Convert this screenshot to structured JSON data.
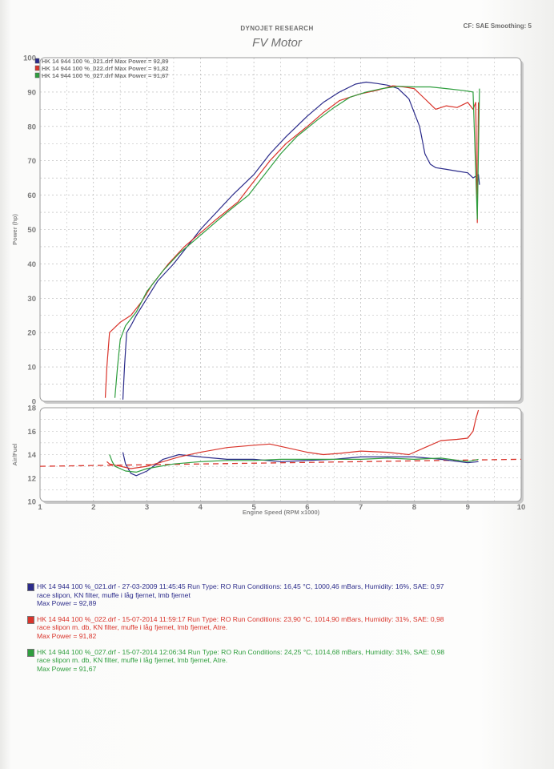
{
  "header": {
    "research": "DYNOJET RESEARCH",
    "cf": "CF: SAE  Smoothing: 5",
    "title": "FV Motor"
  },
  "chart_legend": [
    {
      "text": "HK 14 944 100 %_021.drf Max Power = 92,89",
      "color": "#2b2b8a"
    },
    {
      "text": "HK 14 944 100 %_022.drf Max Power = 91,82",
      "color": "#d9342b"
    },
    {
      "text": "HK 14 944 100 %_027.drf Max Power = 91,67",
      "color": "#2f9e3e"
    }
  ],
  "axes": {
    "power_ylabel": "Power (hp)",
    "af_ylabel": "Air/Fuel",
    "xlabel": "Engine Speed (RPM x1000)",
    "power_ticks": [
      "0",
      "10",
      "20",
      "30",
      "40",
      "50",
      "60",
      "70",
      "80",
      "90",
      "100"
    ],
    "af_ticks": [
      "10",
      "12",
      "14",
      "16",
      "18"
    ],
    "x_ticks": [
      "1",
      "2",
      "3",
      "4",
      "5",
      "6",
      "7",
      "8",
      "9",
      "10"
    ]
  },
  "runs": [
    {
      "color": "#2b2b8a",
      "line1": "HK 14 944 100 %_021.drf - 27-03-2009 11:45:45  Run Type: RO  Run Conditions: 16,45 °C, 1000,46 mBars,  Humidity:  16%, SAE: 0,97",
      "line2": "race slipon, KN filter, muffe i låg fjernet, lmb fjernet",
      "line3": "Max Power = 92,89"
    },
    {
      "color": "#d9342b",
      "line1": "HK 14 944 100 %_022.drf - 15-07-2014 11:59:17  Run Type: RO  Run Conditions: 23,90 °C, 1014,90 mBars,  Humidity:  31%, SAE: 0,98",
      "line2": "race slipon m. db, KN filter, muffe i låg fjernet, lmb fjernet, Atre.",
      "line3": "Max Power = 91,82"
    },
    {
      "color": "#2f9e3e",
      "line1": "HK 14 944 100 %_027.drf - 15-07-2014 12:06:34  Run Type: RO  Run Conditions: 24,25 °C, 1014,68 mBars,  Humidity:  31%, SAE: 0,98",
      "line2": "race slipon m. db, KN filter, muffe i låg fjernet, lmb fjernet, Atre.",
      "line3": "Max Power = 91,67"
    }
  ],
  "chart_data": [
    {
      "type": "line",
      "ylabel": "Power (hp)",
      "xlabel": "Engine Speed (RPM x1000)",
      "xlim": [
        1,
        10
      ],
      "ylim": [
        0,
        100
      ],
      "grid": true,
      "legend_position": "top-left",
      "series": [
        {
          "name": "HK 14 944 100 %_021.drf Max Power = 92,89",
          "color": "#2b2b8a",
          "x": [
            2.55,
            2.58,
            2.62,
            2.7,
            2.8,
            3.0,
            3.2,
            3.5,
            3.8,
            4.0,
            4.3,
            4.6,
            5.0,
            5.3,
            5.6,
            6.0,
            6.3,
            6.6,
            6.9,
            7.1,
            7.3,
            7.5,
            7.7,
            7.9,
            8.1,
            8.2,
            8.3,
            8.4,
            8.6,
            8.8,
            9.0,
            9.1,
            9.2,
            9.22
          ],
          "y": [
            0.5,
            10,
            20,
            22,
            25,
            30,
            35,
            40,
            46,
            50,
            55,
            60,
            66,
            72,
            77,
            83,
            87,
            90,
            92.3,
            92.89,
            92.5,
            92,
            91,
            88,
            80,
            72,
            69,
            68,
            67.5,
            67,
            66.5,
            65,
            66,
            63
          ]
        },
        {
          "name": "HK 14 944 100 %_022.drf Max Power = 91,82",
          "color": "#d9342b",
          "x": [
            2.22,
            2.25,
            2.3,
            2.5,
            2.7,
            2.9,
            3.1,
            3.4,
            3.7,
            4.0,
            4.3,
            4.7,
            5.0,
            5.3,
            5.6,
            6.0,
            6.3,
            6.6,
            7.0,
            7.3,
            7.6,
            7.8,
            8.0,
            8.2,
            8.4,
            8.6,
            8.8,
            9.0,
            9.1,
            9.15,
            9.18,
            9.2
          ],
          "y": [
            1,
            10,
            20,
            23,
            25,
            29,
            34,
            40,
            45,
            49,
            53,
            58,
            64,
            70,
            75,
            80,
            84,
            87.5,
            89.5,
            90.5,
            91.82,
            91.5,
            91,
            88,
            85,
            86,
            85.5,
            87,
            85,
            87,
            52,
            87
          ]
        },
        {
          "name": "HK 14 944 100 %_027.drf Max Power = 91,67",
          "color": "#2f9e3e",
          "x": [
            2.4,
            2.45,
            2.5,
            2.6,
            2.8,
            3.0,
            3.3,
            3.6,
            3.9,
            4.2,
            4.5,
            4.9,
            5.2,
            5.5,
            5.8,
            6.2,
            6.5,
            6.8,
            7.1,
            7.4,
            7.7,
            8.0,
            8.3,
            8.6,
            8.9,
            9.1,
            9.18,
            9.22
          ],
          "y": [
            1,
            10,
            18,
            22,
            26,
            32,
            38,
            43,
            47,
            51,
            55,
            60,
            66,
            72,
            77,
            82,
            85.5,
            88.5,
            90,
            91,
            91.67,
            91.5,
            91.5,
            91,
            90.5,
            90,
            53,
            91
          ]
        }
      ]
    },
    {
      "type": "line",
      "ylabel": "Air/Fuel",
      "xlabel": "Engine Speed (RPM x1000)",
      "xlim": [
        1,
        10
      ],
      "ylim": [
        10,
        18
      ],
      "grid": true,
      "reference_line": {
        "y_start": 13.0,
        "y_end": 13.6,
        "color": "#d9342b",
        "style": "dashed"
      },
      "series": [
        {
          "name": "HK 14 944 100 %_021.drf",
          "color": "#2b2b8a",
          "x": [
            2.55,
            2.6,
            2.7,
            2.8,
            3.0,
            3.3,
            3.6,
            4.0,
            4.5,
            5.0,
            5.5,
            6.0,
            6.5,
            7.0,
            7.5,
            8.0,
            8.5,
            9.0,
            9.2
          ],
          "y": [
            14.2,
            13.2,
            12.4,
            12.2,
            12.6,
            13.6,
            14.0,
            13.8,
            13.6,
            13.6,
            13.4,
            13.5,
            13.6,
            13.8,
            13.8,
            13.8,
            13.6,
            13.3,
            13.4
          ]
        },
        {
          "name": "HK 14 944 100 %_022.drf",
          "color": "#d9342b",
          "x": [
            2.25,
            2.3,
            2.5,
            2.7,
            3.0,
            3.3,
            3.6,
            4.0,
            4.5,
            5.0,
            5.3,
            5.6,
            6.0,
            6.3,
            6.6,
            7.0,
            7.5,
            7.9,
            8.2,
            8.5,
            8.8,
            9.0,
            9.1,
            9.15,
            9.2
          ],
          "y": [
            13.4,
            13.2,
            13.0,
            12.8,
            13.0,
            13.4,
            13.8,
            14.2,
            14.6,
            14.8,
            14.9,
            14.6,
            14.2,
            14.0,
            14.1,
            14.3,
            14.2,
            14.0,
            14.6,
            15.2,
            15.3,
            15.4,
            16.0,
            17.0,
            17.8
          ]
        },
        {
          "name": "HK 14 944 100 %_027.drf",
          "color": "#2f9e3e",
          "x": [
            2.3,
            2.35,
            2.4,
            2.6,
            2.8,
            3.0,
            3.5,
            4.0,
            4.5,
            5.0,
            5.5,
            6.0,
            6.5,
            7.0,
            7.5,
            8.0,
            8.5,
            9.0,
            9.2
          ],
          "y": [
            14.0,
            13.4,
            13.0,
            12.6,
            12.5,
            12.8,
            13.2,
            13.4,
            13.5,
            13.5,
            13.6,
            13.6,
            13.6,
            13.6,
            13.7,
            13.6,
            13.7,
            13.4,
            13.6
          ]
        }
      ]
    }
  ]
}
